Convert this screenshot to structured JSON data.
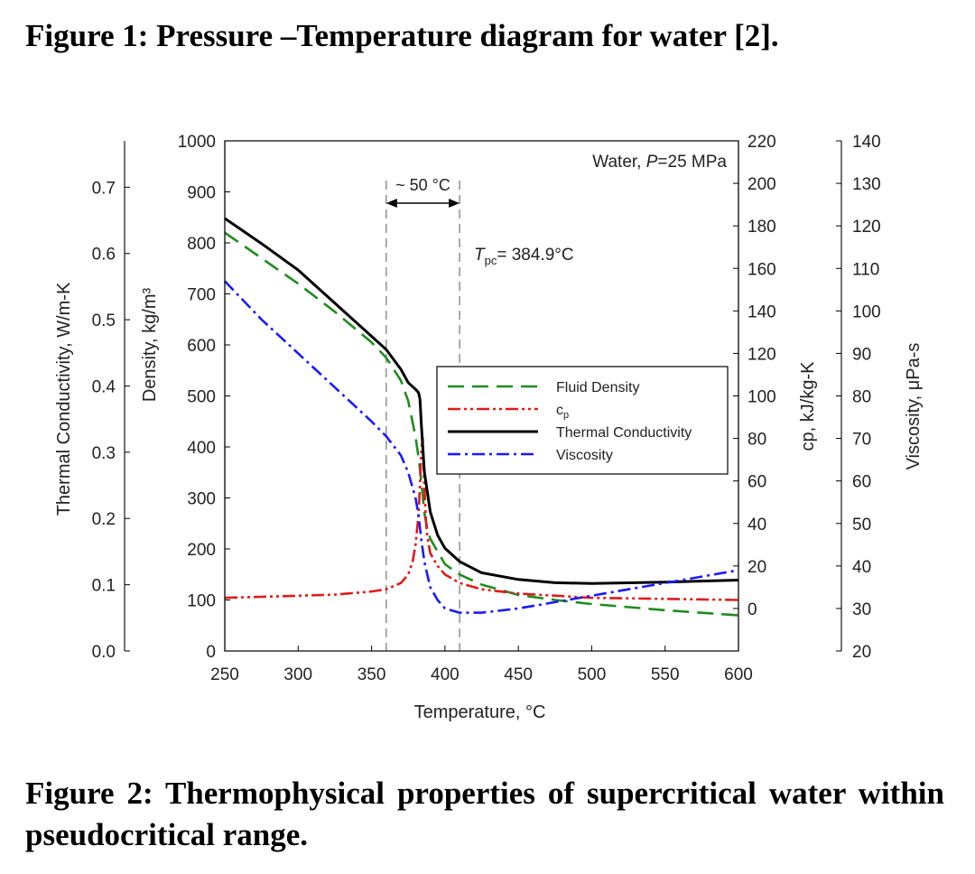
{
  "captions": {
    "figure1": "Figure 1: Pressure –Temperature diagram for water [2].",
    "figure2": "Figure 2: Thermophysical properties of supercritical water within pseudocritical range."
  },
  "chart_data": {
    "type": "line",
    "title": "Water, P=25 MPa",
    "title_prefix": "Water, ",
    "title_var": "P",
    "title_suffix": "=25 MPa",
    "xlabel": "Temperature, °C",
    "xlim": [
      250,
      600
    ],
    "xticks": [
      "250",
      "300",
      "350",
      "400",
      "450",
      "500",
      "550",
      "600"
    ],
    "axes": {
      "density": {
        "label": "Density, kg/m³",
        "lim": [
          0,
          1000
        ],
        "ticks": [
          "0",
          "100",
          "200",
          "300",
          "400",
          "500",
          "600",
          "700",
          "800",
          "900",
          "1000"
        ]
      },
      "thermal_conductivity": {
        "label": "Thermal Conductivity, W/m-K",
        "lim": [
          0.0,
          0.77
        ],
        "ticks": [
          "0.0",
          "0.1",
          "0.2",
          "0.3",
          "0.4",
          "0.5",
          "0.6",
          "0.7"
        ]
      },
      "cp": {
        "label": "cp, kJ/kg-K",
        "lim": [
          -20,
          220
        ],
        "ticks": [
          "0",
          "20",
          "40",
          "60",
          "80",
          "100",
          "120",
          "140",
          "160",
          "180",
          "200",
          "220"
        ]
      },
      "viscosity": {
        "label": "Viscosity, μPa-s",
        "lim": [
          20,
          140
        ],
        "ticks": [
          "20",
          "30",
          "40",
          "50",
          "60",
          "70",
          "80",
          "90",
          "100",
          "110",
          "120",
          "130",
          "140"
        ]
      }
    },
    "annotations": {
      "range_label": "~ 50 °C",
      "tpc_label": "Tpc= 384.9°C",
      "tpc_prefix": "T",
      "tpc_sub": "pc",
      "tpc_value": "= 384.9°C",
      "range_lines_x": [
        360,
        410
      ]
    },
    "series": [
      {
        "name": "Fluid Density",
        "axis": "density",
        "color": "#1e8c1e",
        "style": "dashed",
        "x": [
          250,
          275,
          300,
          325,
          350,
          360,
          370,
          375,
          380,
          382,
          384,
          385,
          386,
          388,
          390,
          395,
          400,
          410,
          425,
          450,
          475,
          500,
          550,
          600
        ],
        "values": [
          820,
          770,
          720,
          665,
          605,
          575,
          530,
          490,
          420,
          380,
          330,
          300,
          270,
          240,
          220,
          195,
          170,
          150,
          130,
          110,
          100,
          92,
          80,
          70
        ]
      },
      {
        "name": "cp",
        "axis": "cp",
        "color": "#e01a1a",
        "style": "dashdotdot",
        "x": [
          250,
          275,
          300,
          325,
          350,
          360,
          370,
          375,
          378,
          380,
          382,
          383,
          384,
          384.9,
          386,
          387,
          388,
          390,
          395,
          400,
          410,
          425,
          450,
          500,
          550,
          600
        ],
        "values": [
          5,
          5.5,
          6,
          6.5,
          8,
          9,
          12,
          16,
          22,
          30,
          44,
          58,
          75,
          80,
          58,
          42,
          34,
          26,
          20,
          16,
          12,
          9,
          7,
          5,
          4.5,
          4
        ]
      },
      {
        "name": "Thermal Conductivity",
        "axis": "thermal_conductivity",
        "color": "#000000",
        "style": "solid",
        "x": [
          250,
          275,
          300,
          325,
          350,
          360,
          370,
          375,
          380,
          382,
          383,
          384,
          386,
          390,
          395,
          400,
          410,
          425,
          450,
          475,
          500,
          550,
          600
        ],
        "values": [
          0.653,
          0.615,
          0.575,
          0.525,
          0.475,
          0.455,
          0.425,
          0.405,
          0.395,
          0.39,
          0.38,
          0.34,
          0.27,
          0.21,
          0.175,
          0.155,
          0.135,
          0.118,
          0.108,
          0.103,
          0.102,
          0.104,
          0.107
        ]
      },
      {
        "name": "Viscosity",
        "axis": "viscosity",
        "color": "#1a1aff",
        "style": "dashdot",
        "x": [
          250,
          275,
          300,
          325,
          350,
          360,
          370,
          375,
          380,
          382,
          384,
          386,
          388,
          390,
          395,
          400,
          410,
          425,
          450,
          475,
          500,
          525,
          550,
          575,
          600
        ],
        "values": [
          107,
          98,
          90,
          82,
          74,
          70.5,
          66,
          62,
          56,
          52,
          46,
          41,
          38,
          35,
          32,
          30,
          29,
          29,
          30,
          31.5,
          33,
          34.5,
          36,
          37.5,
          39
        ]
      }
    ],
    "legend": [
      "Fluid Density",
      "cp",
      "Thermal Conductivity",
      "Viscosity"
    ],
    "legend_position": "center-right"
  }
}
